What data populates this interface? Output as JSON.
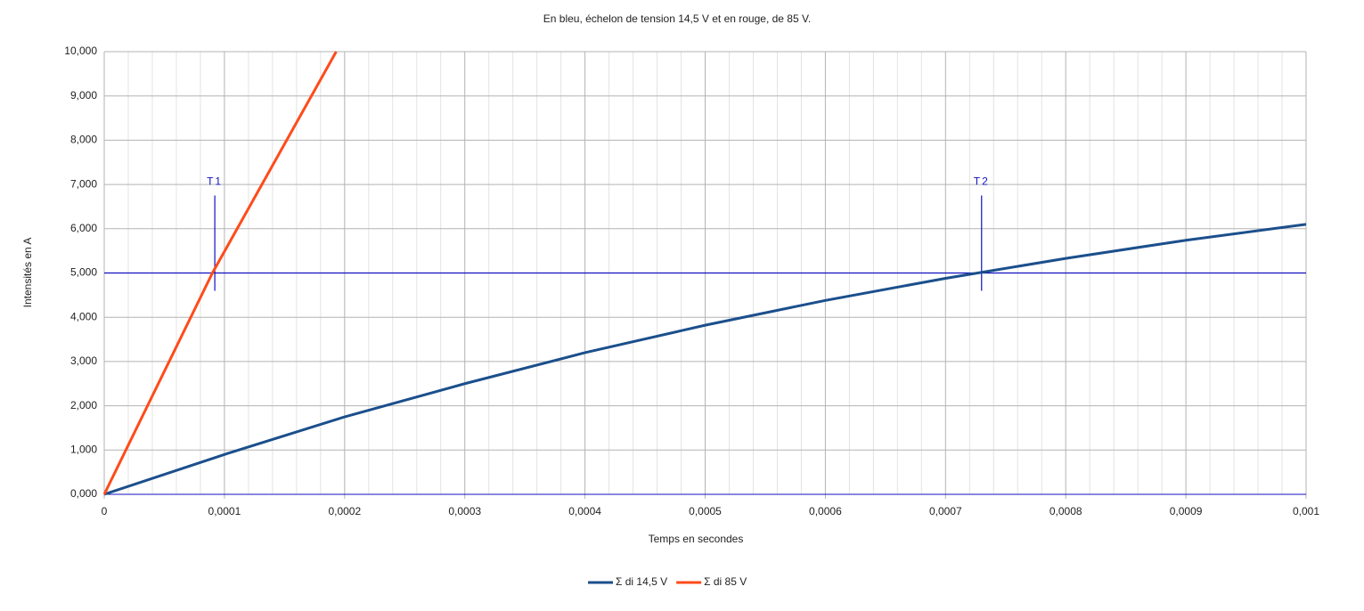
{
  "chart_data": {
    "type": "line",
    "title": "En bleu, échelon de tension 14,5 V et en rouge, de 85 V.",
    "xlabel": "Temps en secondes",
    "ylabel": "Intensités en A",
    "series": [
      {
        "name": "Σ di 14,5 V",
        "color": "#1b4f8c",
        "x": [
          0,
          0.0001,
          0.0002,
          0.0003,
          0.0004,
          0.0005,
          0.0006,
          0.0007,
          0.0008,
          0.0009,
          0.001
        ],
        "values": [
          0,
          0.9,
          1.75,
          2.5,
          3.2,
          3.82,
          4.38,
          4.88,
          5.33,
          5.74,
          6.1
        ]
      },
      {
        "name": "Σ di 85 V",
        "color": "#ff4b1a",
        "x": [
          0,
          9e-05,
          0.000193
        ],
        "values": [
          0,
          5,
          10
        ]
      }
    ],
    "xlim": [
      0,
      0.001
    ],
    "xticks": [
      0,
      {
        "value": 0.0001,
        "label": "0,0001"
      },
      {
        "value": 0.0002,
        "label": "0,0002"
      },
      {
        "value": 0.0003,
        "label": "0,0003"
      },
      {
        "value": 0.0004,
        "label": "0,0004"
      },
      {
        "value": 0.0005,
        "label": "0,0005"
      },
      {
        "value": 0.0006,
        "label": "0,0006"
      },
      {
        "value": 0.0007,
        "label": "0,0007"
      },
      {
        "value": 0.0008,
        "label": "0,0008"
      },
      {
        "value": 0.0009,
        "label": "0,0009"
      },
      {
        "value": 0.001,
        "label": "0,001"
      }
    ],
    "ylim": [
      0,
      10
    ],
    "yticks": [
      {
        "value": 0,
        "label": "0,000"
      },
      {
        "value": 1,
        "label": "1,000"
      },
      {
        "value": 2,
        "label": "2,000"
      },
      {
        "value": 3,
        "label": "3,000"
      },
      {
        "value": 4,
        "label": "4,000"
      },
      {
        "value": 5,
        "label": "5,000"
      },
      {
        "value": 6,
        "label": "6,000"
      },
      {
        "value": 7,
        "label": "7,000"
      },
      {
        "value": 8,
        "label": "8,000"
      },
      {
        "value": 9,
        "label": "9,000"
      },
      {
        "value": 10,
        "label": "10,000"
      }
    ],
    "grid": true,
    "legend": "bottom",
    "reference_line": {
      "y": 5,
      "color": "#1010c0"
    },
    "annotations": [
      {
        "text": "T1",
        "x": 9.2e-05
      },
      {
        "text": "T2",
        "x": 0.00073
      }
    ]
  }
}
